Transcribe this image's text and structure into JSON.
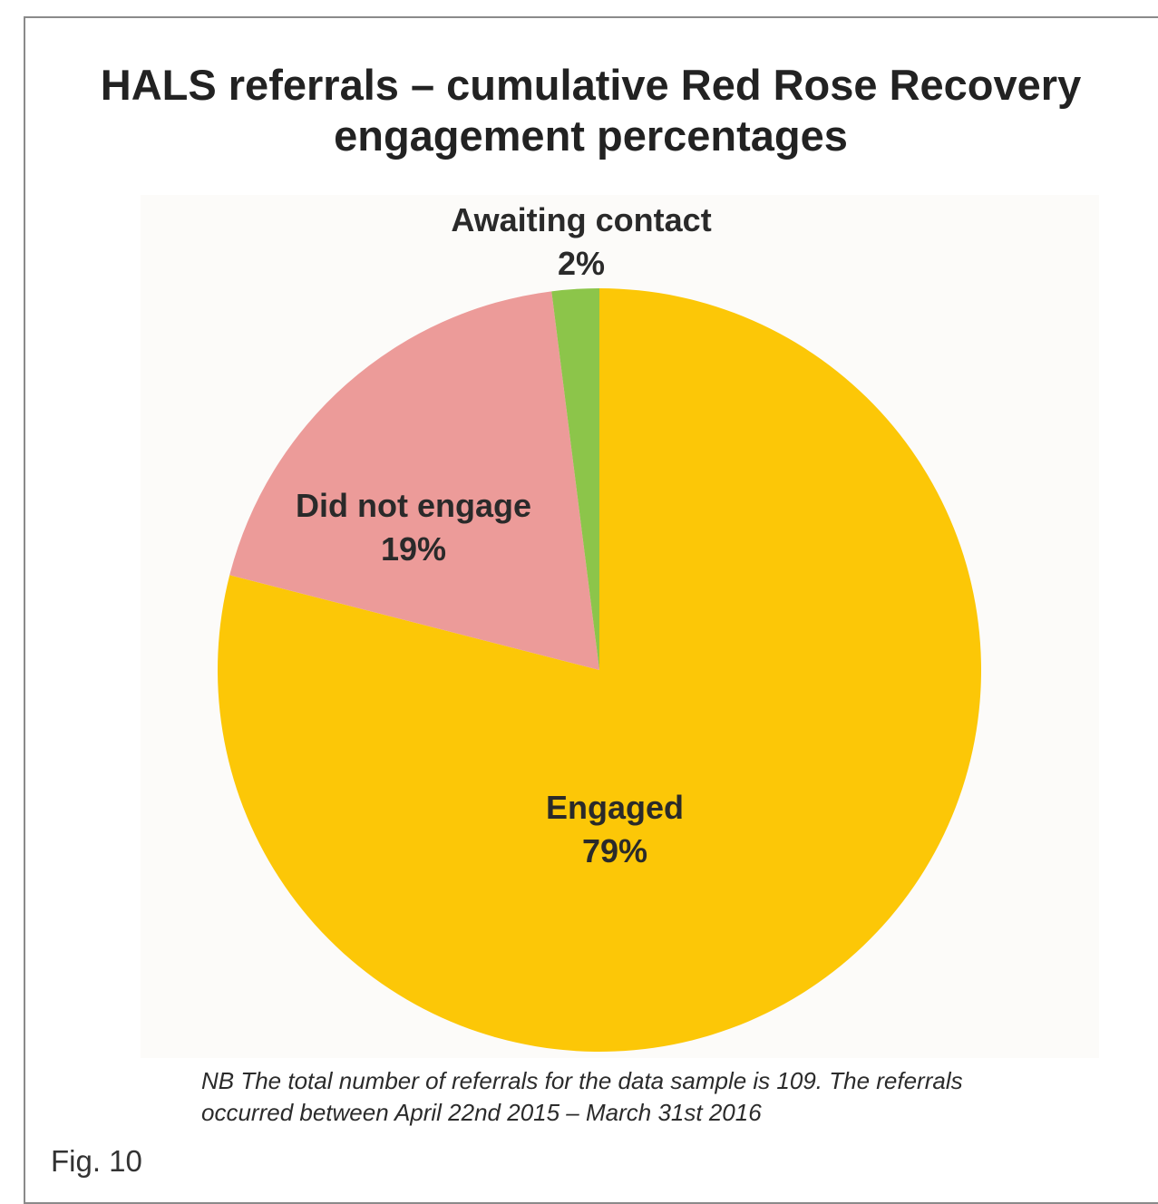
{
  "chart_data": {
    "type": "pie",
    "title_lines": [
      "HALS referrals – cumulative Red Rose Recovery",
      "engagement percentages"
    ],
    "slices": [
      {
        "name": "Engaged",
        "value": 79,
        "label": "79%",
        "color": "#fcc707"
      },
      {
        "name": "Did not engage",
        "value": 19,
        "label": "19%",
        "color": "#ec9b99"
      },
      {
        "name": "Awaiting contact",
        "value": 2,
        "label": "2%",
        "color": "#8cc54a"
      }
    ],
    "start_angle_deg": 0,
    "direction": "clockwise"
  },
  "note_lines": [
    "NB The total number of referrals for the data sample is 109. The referrals",
    "occurred between April 22nd 2015 – March 31st 2016"
  ],
  "figure_label": "Fig. 10"
}
